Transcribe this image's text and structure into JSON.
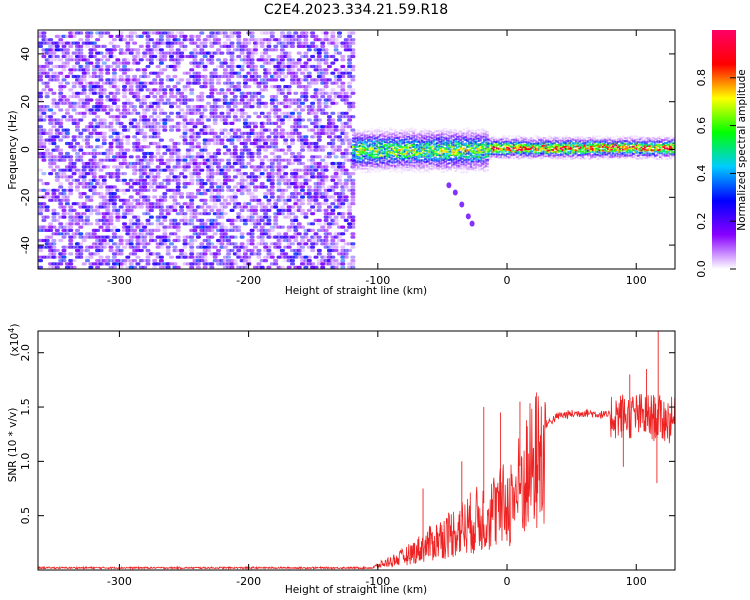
{
  "page_title": "C2E4.2023.334.21.59.R18",
  "chart_data": [
    {
      "type": "heatmap",
      "xlabel": "Height of straight line (km)",
      "ylabel": "Frequency (Hz)",
      "xlim": [
        -363,
        130
      ],
      "ylim": [
        -50,
        50
      ],
      "x_ticks": [
        -300,
        -200,
        -100,
        0,
        100
      ],
      "y_ticks": [
        -40,
        -20,
        0,
        20,
        40
      ],
      "grid": false,
      "colorbar": {
        "label": "Normalized spectral amplitude",
        "range": [
          0,
          1
        ],
        "ticks": [
          0.0,
          0.2,
          0.4,
          0.6,
          0.8
        ],
        "colors": [
          "#ffffff",
          "#8800ff",
          "#0000ff",
          "#00ccff",
          "#00ff00",
          "#ffff00",
          "#ff0000",
          "#ff0066"
        ]
      },
      "regions": [
        {
          "description_free": true,
          "x_range": [
            -363,
            -120
          ],
          "freq_range": [
            -50,
            50
          ],
          "amplitude_range": [
            0.05,
            0.3
          ],
          "pattern": "noise"
        },
        {
          "x_range": [
            -120,
            -15
          ],
          "center_freq": 0,
          "half_width": 6,
          "amplitude_range": [
            0.3,
            0.8
          ]
        },
        {
          "x_range": [
            -15,
            130
          ],
          "center_freq": 1,
          "half_width": 3,
          "amplitude_range": [
            0.5,
            1.0
          ]
        }
      ],
      "tail_points": [
        [
          -45,
          -15
        ],
        [
          -40,
          -18
        ],
        [
          -35,
          -23
        ],
        [
          -30,
          -28
        ],
        [
          -27,
          -31
        ]
      ]
    },
    {
      "type": "line",
      "xlabel": "Height of straight line (km)",
      "ylabel": "SNR (10 * v/v)",
      "y_multiplier": "(x10^4)",
      "y_multiplier_base": "(x10",
      "y_multiplier_exp": "4",
      "y_multiplier_close": ")",
      "xlim": [
        -363,
        130
      ],
      "ylim": [
        0,
        2.2
      ],
      "x_ticks": [
        -300,
        -200,
        -100,
        0,
        100
      ],
      "y_ticks": [
        0.5,
        1.0,
        1.5,
        2.0
      ],
      "grid": false,
      "color": "#ee2222",
      "envelope": [
        {
          "x": -363,
          "y": 0.02
        },
        {
          "x": -105,
          "y": 0.02
        },
        {
          "x": -100,
          "y": 0.05
        },
        {
          "x": -80,
          "y": 0.15
        },
        {
          "x": -60,
          "y": 0.3
        },
        {
          "x": -40,
          "y": 0.45
        },
        {
          "x": -20,
          "y": 0.6
        },
        {
          "x": 0,
          "y": 0.75
        },
        {
          "x": 8,
          "y": 0.9
        },
        {
          "x": 15,
          "y": 1.1
        },
        {
          "x": 25,
          "y": 1.3
        },
        {
          "x": 40,
          "y": 1.42
        },
        {
          "x": 60,
          "y": 1.45
        },
        {
          "x": 80,
          "y": 1.42
        },
        {
          "x": 100,
          "y": 1.42
        },
        {
          "x": 115,
          "y": 1.4
        },
        {
          "x": 130,
          "y": 1.37
        }
      ],
      "spikes": [
        {
          "x": -65,
          "y": 0.75
        },
        {
          "x": -35,
          "y": 1.0
        },
        {
          "x": -18,
          "y": 1.5
        },
        {
          "x": -5,
          "y": 1.45
        },
        {
          "x": 10,
          "y": 1.55
        },
        {
          "x": 95,
          "y": 1.8
        },
        {
          "x": 108,
          "y": 1.85
        },
        {
          "x": 117,
          "y": 2.2
        },
        {
          "x": 116,
          "y": 0.8
        },
        {
          "x": 90,
          "y": 0.95
        }
      ]
    }
  ]
}
